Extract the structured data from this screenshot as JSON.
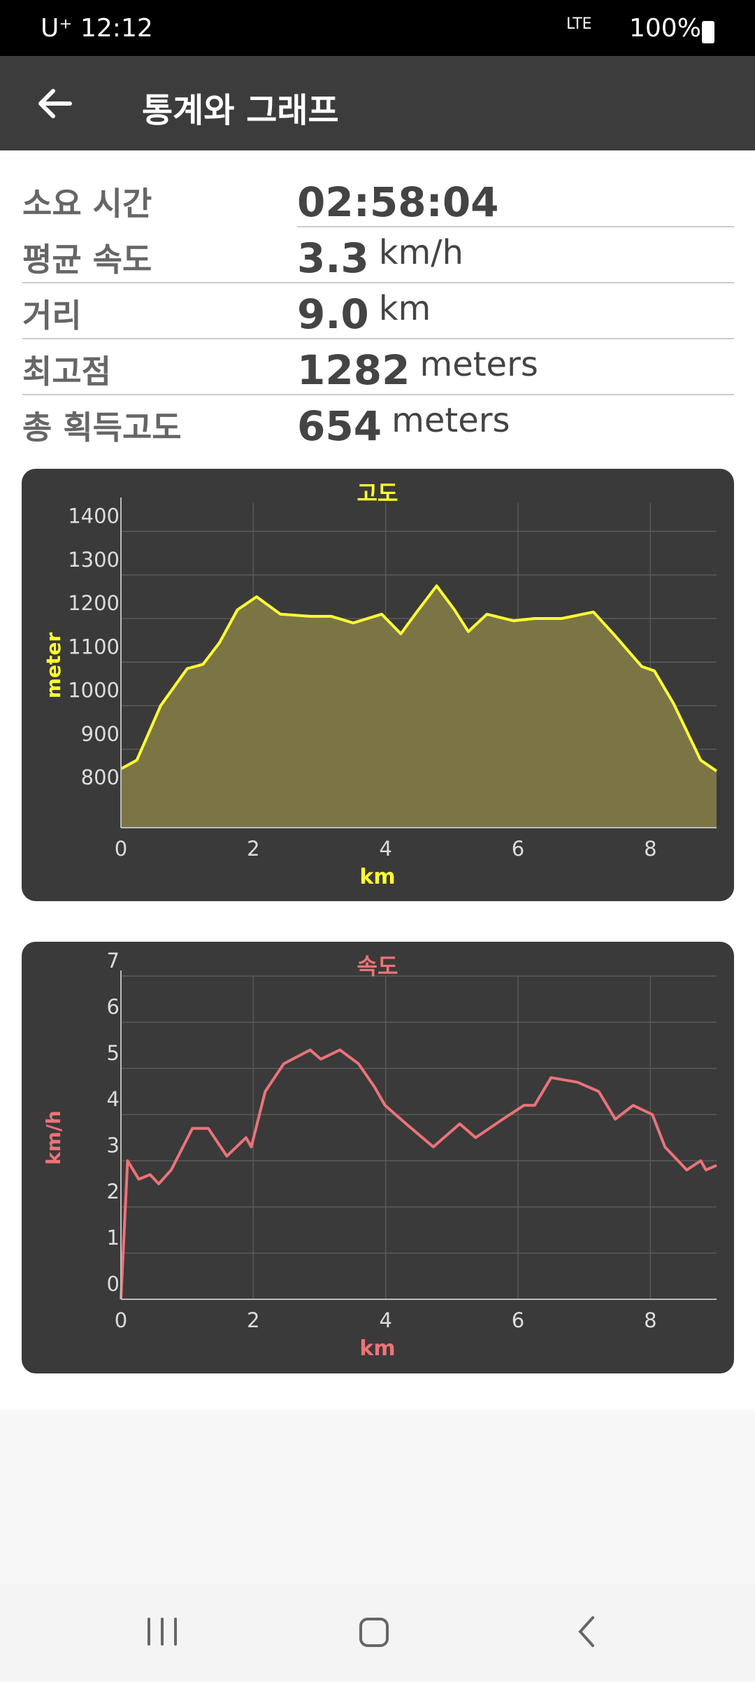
{
  "status_bar": {
    "carrier": "U⁺",
    "time": "12:12",
    "network": "LTE",
    "battery": "100%"
  },
  "app_bar": {
    "title": "통계와 그래프"
  },
  "stats": [
    {
      "label": "소요 시간",
      "value": "02:58:04"
    },
    {
      "label": "평균 속도",
      "value": "3.3",
      "unit": "km/h"
    },
    {
      "label": "거리",
      "value": "9.0",
      "unit": "km"
    },
    {
      "label": "최고점",
      "value": "1282",
      "unit": "meters"
    },
    {
      "label": "총 획득고도",
      "value": "654",
      "unit": "meters"
    }
  ],
  "chart_data": [
    {
      "type": "area",
      "title": "고도",
      "x_label": "km",
      "y_label": "meter",
      "x": [
        0,
        0.24,
        0.6,
        1.0,
        1.24,
        1.49,
        1.76,
        2.05,
        2.41,
        2.86,
        3.18,
        3.51,
        3.94,
        4.23,
        4.47,
        4.77,
        5.04,
        5.25,
        5.53,
        5.93,
        6.25,
        6.66,
        7.14,
        7.47,
        7.87,
        8.06,
        8.35,
        8.76,
        9.0
      ],
      "values": [
        855,
        875,
        1000,
        1085,
        1095,
        1145,
        1220,
        1250,
        1210,
        1205,
        1205,
        1190,
        1210,
        1165,
        1215,
        1275,
        1220,
        1170,
        1210,
        1195,
        1200,
        1200,
        1215,
        1160,
        1090,
        1080,
        1005,
        875,
        850
      ],
      "color": "#ffff33",
      "fill_color": "#7b7546",
      "grid": true,
      "xlim": [
        0,
        9
      ],
      "xticks": [
        0,
        2,
        4,
        6,
        8
      ],
      "ylim": [
        720,
        1465
      ],
      "yticks": [
        800,
        900,
        1000,
        1100,
        1200,
        1300,
        1400
      ]
    },
    {
      "type": "line",
      "title": "속도",
      "x_label": "km",
      "y_label": "km/h",
      "x": [
        0,
        0.1,
        0.27,
        0.44,
        0.57,
        0.76,
        1.08,
        1.32,
        1.6,
        1.89,
        1.97,
        2.18,
        2.46,
        2.86,
        3.02,
        3.31,
        3.59,
        3.83,
        3.99,
        4.31,
        4.72,
        5.12,
        5.36,
        5.77,
        6.09,
        6.25,
        6.5,
        6.9,
        7.22,
        7.47,
        7.74,
        8.03,
        8.22,
        8.55,
        8.76,
        8.84,
        9.0
      ],
      "values": [
        0,
        3.0,
        2.6,
        2.7,
        2.5,
        2.8,
        3.7,
        3.7,
        3.1,
        3.5,
        3.3,
        4.5,
        5.1,
        5.4,
        5.2,
        5.4,
        5.1,
        4.6,
        4.2,
        3.8,
        3.3,
        3.8,
        3.5,
        3.9,
        4.2,
        4.2,
        4.8,
        4.7,
        4.5,
        3.9,
        4.2,
        4.0,
        3.3,
        2.8,
        3.0,
        2.8,
        2.9
      ],
      "color": "#ec7379",
      "grid": true,
      "xlim": [
        0,
        9
      ],
      "xticks": [
        0,
        2,
        4,
        6,
        8
      ],
      "ylim": [
        0,
        7
      ],
      "yticks": [
        0,
        1,
        2,
        3,
        4,
        5,
        6,
        7
      ]
    }
  ]
}
